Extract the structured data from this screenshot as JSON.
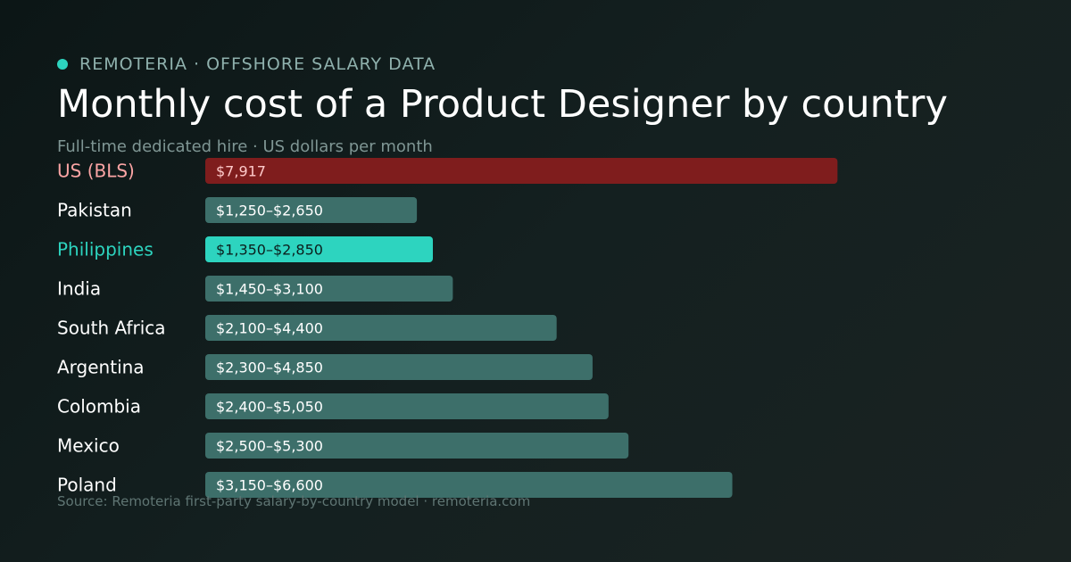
{
  "brand": {
    "label": "REMOTERIA · OFFSHORE SALARY DATA",
    "accent_color": "#2dd4bf"
  },
  "title": "Monthly cost of a Product Designer by country",
  "subtitle": "Full-time dedicated hire · US dollars per month",
  "source": "Source: Remoteria first-party salary-by-country model · remoteria.com",
  "chart_data": {
    "type": "bar",
    "orientation": "horizontal",
    "x_range": [
      0,
      9500
    ],
    "grid": false,
    "legend": "none",
    "categories": [
      "US (BLS)",
      "Pakistan",
      "Philippines",
      "India",
      "South Africa",
      "Argentina",
      "Colombia",
      "Mexico",
      "Poland"
    ],
    "low_values": [
      7917,
      1250,
      1350,
      1450,
      2100,
      2300,
      2400,
      2500,
      3150
    ],
    "high_values": [
      7917,
      2650,
      2850,
      3100,
      4400,
      4850,
      5050,
      5300,
      6600
    ],
    "data_labels": [
      "$7,917",
      "$1,250–$2,650",
      "$1,350–$2,850",
      "$1,450–$3,100",
      "$2,100–$4,400",
      "$2,300–$4,850",
      "$2,400–$5,050",
      "$2,500–$5,300",
      "$3,150–$6,600"
    ],
    "bar_colors": [
      "#7f1d1d",
      "#3d6f6a",
      "#2dd4bf",
      "#3d6f6a",
      "#3d6f6a",
      "#3d6f6a",
      "#3d6f6a",
      "#3d6f6a",
      "#3d6f6a"
    ],
    "label_colors": [
      "#fca5a5",
      "#ffffff",
      "#2dd4bf",
      "#ffffff",
      "#ffffff",
      "#ffffff",
      "#ffffff",
      "#ffffff",
      "#ffffff"
    ],
    "value_label_colors": [
      "#fecaca",
      "#ffffff",
      "#0b1f1d",
      "#ffffff",
      "#ffffff",
      "#ffffff",
      "#ffffff",
      "#ffffff",
      "#ffffff"
    ]
  }
}
